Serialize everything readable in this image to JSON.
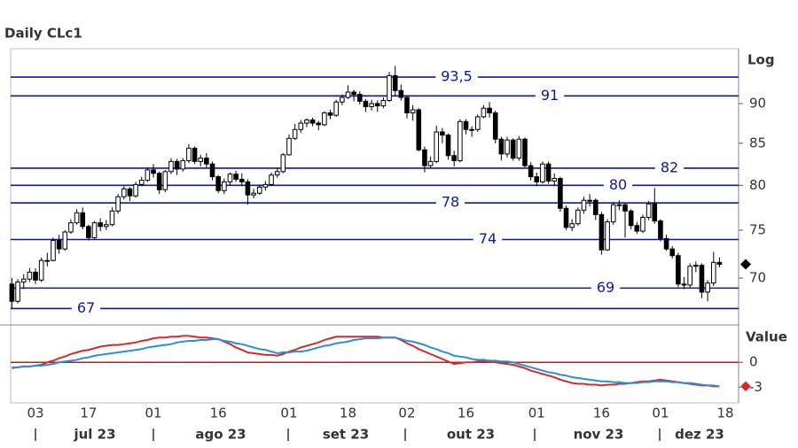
{
  "chart_data": [
    {
      "type": "candlestick",
      "title": "Daily CLc1",
      "y_label": "Log",
      "log_scale": true,
      "open": [
        69.4,
        67.7,
        69.6,
        69.9,
        70.6,
        69.8,
        71.8,
        71.8,
        73.9,
        73.0,
        74.8,
        75.8,
        76.9,
        75.4,
        74.2,
        75.8,
        75.4,
        75.6,
        77.1,
        78.7,
        79.6,
        78.8,
        80.1,
        80.6,
        81.8,
        81.4,
        79.5,
        81.6,
        82.8,
        81.9,
        82.9,
        84.4,
        82.8,
        83.2,
        82.5,
        81.0,
        79.4,
        80.4,
        81.3,
        80.7,
        80.4,
        78.9,
        79.1,
        79.8,
        80.1,
        81.2,
        81.6,
        83.6,
        85.6,
        86.7,
        87.5,
        87.9,
        87.5,
        87.3,
        88.8,
        88.5,
        90.2,
        90.8,
        91.5,
        91.2,
        90.3,
        89.6,
        90.0,
        89.7,
        90.4,
        93.7,
        91.7,
        90.8,
        88.8,
        89.2,
        84.2,
        82.3,
        82.8,
        86.4,
        86.0,
        83.5,
        82.9,
        87.7,
        86.7,
        86.7,
        88.3,
        89.4,
        88.8,
        85.5,
        83.7,
        85.4,
        83.2,
        85.5,
        82.3,
        81.0,
        80.4,
        82.5,
        80.5,
        80.8,
        77.4,
        75.3,
        75.7,
        77.2,
        78.3,
        78.3,
        76.7,
        72.9,
        75.9,
        77.8,
        77.8,
        77.1,
        75.5,
        74.9,
        76.4,
        77.9,
        76.0,
        74.1,
        73.0,
        72.3,
        69.4,
        69.3,
        71.2,
        71.3,
        68.6,
        69.5,
        71.6,
        null
      ],
      "high": [
        70.0,
        69.9,
        70.4,
        71.0,
        71.0,
        72.1,
        72.6,
        74.2,
        74.5,
        75.0,
        76.2,
        77.3,
        77.5,
        75.6,
        76.0,
        76.3,
        76.1,
        77.5,
        79.0,
        79.9,
        79.8,
        80.4,
        81.0,
        82.1,
        82.5,
        81.6,
        81.8,
        83.2,
        83.1,
        83.2,
        84.9,
        84.6,
        83.6,
        83.8,
        82.8,
        81.2,
        80.8,
        81.5,
        81.7,
        81.4,
        80.7,
        79.6,
        80.1,
        80.5,
        81.5,
        82.0,
        83.8,
        86.1,
        87.4,
        87.9,
        88.1,
        88.2,
        87.8,
        89.0,
        89.2,
        90.5,
        91.2,
        92.4,
        91.8,
        91.6,
        90.6,
        90.5,
        90.4,
        90.8,
        94.2,
        95.0,
        92.5,
        91.0,
        89.8,
        89.4,
        84.6,
        83.4,
        87.2,
        86.9,
        86.2,
        84.1,
        88.0,
        88.0,
        87.1,
        88.6,
        89.8,
        90.2,
        89.1,
        85.8,
        85.8,
        85.6,
        85.9,
        85.7,
        82.7,
        81.5,
        82.8,
        82.8,
        81.4,
        81.0,
        77.7,
        76.2,
        77.5,
        78.7,
        79.0,
        78.5,
        77.0,
        76.2,
        78.1,
        78.3,
        78.0,
        77.3,
        75.9,
        76.7,
        78.2,
        79.7,
        76.2,
        74.5,
        73.3,
        72.6,
        70.1,
        71.5,
        71.7,
        71.5,
        69.8,
        72.7,
        72.1,
        null
      ],
      "low": [
        67.0,
        67.5,
        68.9,
        69.6,
        69.4,
        69.6,
        71.2,
        71.7,
        72.5,
        72.8,
        74.6,
        75.6,
        75.1,
        73.9,
        74.0,
        74.9,
        75.0,
        75.4,
        76.8,
        78.4,
        78.2,
        78.6,
        79.9,
        80.4,
        80.9,
        79.0,
        79.2,
        81.3,
        81.2,
        81.6,
        82.6,
        82.5,
        82.2,
        82.1,
        80.6,
        79.1,
        79.0,
        80.0,
        80.4,
        79.9,
        77.8,
        78.5,
        78.9,
        79.4,
        79.9,
        80.9,
        81.4,
        83.5,
        85.4,
        86.3,
        87.0,
        87.1,
        86.6,
        87.1,
        88.0,
        88.3,
        89.8,
        90.6,
        90.3,
        89.9,
        88.9,
        89.1,
        88.9,
        89.4,
        90.2,
        91.0,
        90.4,
        88.1,
        87.8,
        84.0,
        81.5,
        82.0,
        82.6,
        85.0,
        83.0,
        82.2,
        82.7,
        86.1,
        85.8,
        86.4,
        88.1,
        88.2,
        85.0,
        82.9,
        83.3,
        82.9,
        82.9,
        82.1,
        80.6,
        79.9,
        80.2,
        80.2,
        79.9,
        77.0,
        75.0,
        74.9,
        75.5,
        76.8,
        77.6,
        76.1,
        72.4,
        72.8,
        75.6,
        77.2,
        74.2,
        75.1,
        74.6,
        74.7,
        76.1,
        75.7,
        73.8,
        72.8,
        72.0,
        69.1,
        68.9,
        69.0,
        70.6,
        68.0,
        67.7,
        69.2,
        71.1,
        null
      ],
      "close": [
        67.7,
        69.6,
        69.9,
        70.6,
        69.8,
        71.8,
        71.8,
        73.9,
        73.0,
        74.8,
        75.8,
        76.9,
        75.4,
        74.2,
        75.8,
        75.4,
        75.6,
        77.1,
        78.7,
        79.6,
        78.8,
        80.1,
        80.6,
        81.8,
        81.4,
        79.5,
        81.6,
        82.8,
        81.9,
        82.9,
        84.4,
        82.8,
        83.2,
        82.5,
        81.0,
        79.4,
        80.4,
        81.3,
        80.7,
        80.4,
        78.9,
        79.1,
        79.8,
        80.1,
        81.2,
        81.6,
        83.6,
        85.6,
        86.7,
        87.5,
        87.9,
        87.5,
        87.3,
        88.8,
        88.5,
        90.2,
        90.8,
        91.5,
        91.2,
        90.3,
        89.6,
        90.0,
        89.7,
        90.4,
        93.7,
        91.7,
        90.8,
        88.8,
        89.2,
        84.2,
        82.3,
        82.8,
        86.4,
        86.0,
        83.5,
        82.9,
        87.7,
        86.7,
        86.7,
        88.3,
        89.4,
        88.8,
        85.5,
        83.7,
        85.4,
        83.2,
        85.5,
        82.3,
        81.0,
        80.4,
        82.5,
        80.5,
        80.8,
        77.4,
        75.3,
        75.7,
        77.2,
        78.3,
        78.3,
        76.7,
        72.9,
        75.9,
        77.8,
        77.8,
        77.1,
        75.5,
        74.9,
        76.4,
        77.9,
        76.0,
        74.1,
        73.0,
        72.3,
        69.4,
        69.3,
        71.2,
        71.3,
        68.6,
        69.5,
        71.6,
        71.4,
        null
      ],
      "up_color": "#ffffff",
      "down_color": "#000000",
      "ylim": [
        65.6,
        97.4
      ],
      "yticks": [
        70,
        75,
        80,
        85,
        90
      ],
      "levels": [
        {
          "value": 93.5,
          "label": "93,5"
        },
        91,
        82,
        80,
        78,
        74,
        69,
        67
      ],
      "level_color": "#0a1a9e"
    },
    {
      "type": "line",
      "y_label": "Value",
      "categories": [
        null,
        null,
        null,
        null,
        "03",
        null,
        null,
        null,
        null,
        null,
        null,
        null,
        null,
        "17",
        null,
        null,
        null,
        null,
        null,
        null,
        null,
        null,
        null,
        null,
        "01",
        null,
        null,
        null,
        null,
        null,
        null,
        null,
        null,
        null,
        null,
        "16",
        null,
        null,
        null,
        null,
        null,
        null,
        null,
        null,
        null,
        null,
        null,
        "01",
        null,
        null,
        null,
        null,
        null,
        null,
        null,
        null,
        null,
        "18",
        null,
        null,
        null,
        null,
        null,
        null,
        null,
        null,
        null,
        "02",
        null,
        null,
        null,
        null,
        null,
        null,
        null,
        null,
        null,
        "16",
        null,
        null,
        null,
        null,
        null,
        null,
        null,
        null,
        null,
        null,
        null,
        "01",
        null,
        null,
        null,
        null,
        null,
        null,
        null,
        null,
        null,
        null,
        "16",
        null,
        null,
        null,
        null,
        null,
        null,
        null,
        null,
        null,
        "01",
        null,
        null,
        null,
        null,
        null,
        null,
        null,
        null,
        null,
        null,
        "18"
      ],
      "x_groups": [
        "jul 23",
        "ago 23",
        "set 23",
        "out 23",
        "nov 23",
        "dez 23"
      ],
      "series": [
        {
          "color": "#d42a2a",
          "values": [
            -0.7,
            -0.6,
            -0.5,
            -0.5,
            -0.4,
            -0.3,
            0.0,
            0.2,
            0.5,
            0.7,
            1.0,
            1.2,
            1.4,
            1.5,
            1.7,
            1.9,
            2.0,
            2.1,
            2.1,
            2.2,
            2.3,
            2.4,
            2.6,
            2.7,
            2.9,
            3.0,
            3.0,
            3.1,
            3.1,
            3.2,
            3.2,
            3.1,
            3.0,
            3.0,
            2.9,
            2.8,
            2.5,
            2.2,
            1.8,
            1.5,
            1.2,
            1.1,
            1.0,
            0.9,
            0.9,
            0.8,
            1.0,
            1.3,
            1.5,
            1.8,
            2.0,
            2.2,
            2.4,
            2.7,
            2.9,
            3.1,
            3.1,
            3.1,
            3.1,
            3.1,
            3.1,
            3.1,
            3.1,
            3.0,
            3.0,
            3.0,
            2.7,
            2.3,
            2.0,
            1.6,
            1.3,
            1.0,
            0.7,
            0.4,
            0.1,
            -0.2,
            -0.1,
            0.0,
            0.0,
            0.1,
            0.2,
            0.1,
            0.0,
            -0.1,
            -0.2,
            -0.3,
            -0.5,
            -0.7,
            -1.0,
            -1.2,
            -1.4,
            -1.6,
            -1.8,
            -2.1,
            -2.3,
            -2.5,
            -2.6,
            -2.6,
            -2.7,
            -2.7,
            -2.8,
            -2.7,
            -2.7,
            -2.6,
            -2.6,
            -2.5,
            -2.4,
            -2.3,
            -2.3,
            -2.2,
            -2.1,
            -2.2,
            -2.3,
            -2.4,
            -2.5,
            -2.6,
            -2.7,
            -2.8,
            -2.8,
            -2.9,
            -2.9,
            null
          ]
        },
        {
          "color": "#2a8fd6",
          "values": [
            -0.6,
            -0.6,
            -0.5,
            -0.5,
            -0.4,
            -0.4,
            -0.3,
            -0.2,
            0.0,
            0.1,
            0.2,
            0.3,
            0.5,
            0.6,
            0.8,
            0.9,
            1.0,
            1.1,
            1.2,
            1.3,
            1.4,
            1.5,
            1.6,
            1.8,
            1.9,
            2.0,
            2.1,
            2.2,
            2.4,
            2.5,
            2.6,
            2.6,
            2.7,
            2.7,
            2.8,
            2.8,
            2.6,
            2.5,
            2.3,
            2.2,
            2.0,
            1.8,
            1.6,
            1.5,
            1.3,
            1.1,
            1.2,
            1.2,
            1.3,
            1.3,
            1.4,
            1.6,
            1.8,
            2.0,
            2.1,
            2.3,
            2.4,
            2.5,
            2.7,
            2.8,
            2.9,
            2.9,
            2.9,
            3.0,
            3.0,
            3.0,
            2.8,
            2.6,
            2.5,
            2.3,
            2.1,
            1.8,
            1.6,
            1.3,
            1.1,
            0.8,
            0.7,
            0.6,
            0.4,
            0.3,
            0.3,
            0.2,
            0.2,
            0.1,
            0.1,
            0.0,
            -0.2,
            -0.4,
            -0.6,
            -0.8,
            -1.0,
            -1.2,
            -1.3,
            -1.5,
            -1.6,
            -1.8,
            -1.9,
            -2.0,
            -2.1,
            -2.2,
            -2.3,
            -2.3,
            -2.4,
            -2.4,
            -2.5,
            -2.5,
            -2.5,
            -2.4,
            -2.4,
            -2.3,
            -2.3,
            -2.3,
            -2.4,
            -2.4,
            -2.5,
            -2.5,
            -2.6,
            -2.7,
            -2.8,
            -2.8,
            -2.9,
            null
          ]
        }
      ],
      "ylim": [
        -4.9,
        4.2
      ],
      "yticks": [
        0,
        -3
      ],
      "baseline": 0,
      "baseline_color": "#e01010"
    }
  ]
}
